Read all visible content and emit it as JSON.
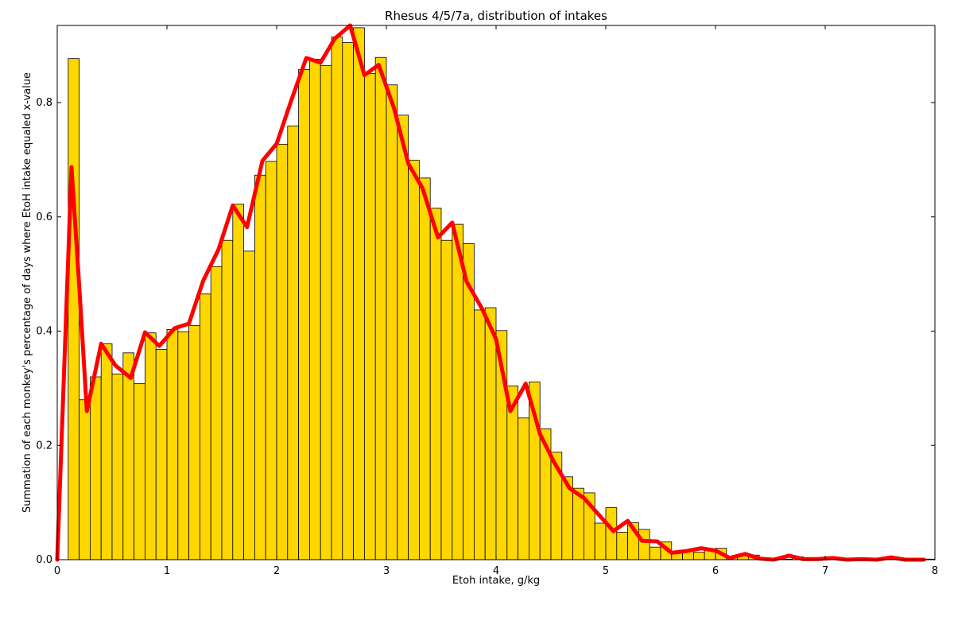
{
  "chart_data": {
    "type": "bar",
    "title": "Rhesus 4/5/7a, distribution of intakes",
    "xlabel": "Etoh intake, g/kg",
    "ylabel": "Summation of each monkey's percentage of days where EtoH intake equaled x-value",
    "xlim": [
      0,
      8
    ],
    "ylim": [
      0,
      0.935
    ],
    "x_ticks": [
      "0",
      "1",
      "2",
      "3",
      "4",
      "5",
      "6",
      "7",
      "8"
    ],
    "y_ticks": [
      "0.0",
      "0.2",
      "0.4",
      "0.6",
      "0.8"
    ],
    "grid": false,
    "bin_width": 0.1,
    "bins": {
      "left_edges": [
        0.1,
        0.2,
        0.3,
        0.4,
        0.5,
        0.6,
        0.7,
        0.8,
        0.9,
        1.0,
        1.1,
        1.2,
        1.3,
        1.4,
        1.5,
        1.6,
        1.7,
        1.8,
        1.9,
        2.0,
        2.1,
        2.2,
        2.3,
        2.4,
        2.5,
        2.6,
        2.7,
        2.8,
        2.9,
        3.0,
        3.1,
        3.2,
        3.3,
        3.4,
        3.5,
        3.6,
        3.7,
        3.8,
        3.9,
        4.0,
        4.1,
        4.2,
        4.3,
        4.4,
        4.5,
        4.6,
        4.7,
        4.8,
        4.9,
        5.0,
        5.1,
        5.2,
        5.3,
        5.4,
        5.5,
        5.6,
        5.7,
        5.8,
        5.9,
        6.0,
        6.1,
        6.2,
        6.3,
        6.4,
        6.5,
        6.6,
        6.7,
        6.8,
        6.9,
        7.0,
        7.1,
        7.2,
        7.3,
        7.4,
        7.5,
        7.6,
        7.7,
        7.8,
        7.9
      ],
      "values": [
        0.877,
        0.28,
        0.32,
        0.378,
        0.325,
        0.362,
        0.308,
        0.397,
        0.368,
        0.403,
        0.399,
        0.41,
        0.465,
        0.513,
        0.559,
        0.622,
        0.54,
        0.673,
        0.697,
        0.727,
        0.759,
        0.858,
        0.876,
        0.865,
        0.915,
        0.905,
        0.931,
        0.851,
        0.879,
        0.831,
        0.778,
        0.699,
        0.668,
        0.615,
        0.559,
        0.587,
        0.553,
        0.437,
        0.441,
        0.401,
        0.304,
        0.248,
        0.311,
        0.229,
        0.188,
        0.145,
        0.125,
        0.117,
        0.064,
        0.091,
        0.048,
        0.065,
        0.053,
        0.022,
        0.031,
        0.012,
        0.016,
        0.013,
        0.019,
        0.02,
        0.005,
        0.008,
        0.008,
        0.003,
        0.002,
        0.001,
        0.005,
        0.002,
        0.002,
        0.001,
        0.001,
        0.001,
        0.001,
        0.001,
        0.001,
        0.002,
        0.001,
        0.001,
        0.001
      ]
    },
    "series": [
      {
        "name": "",
        "type": "line",
        "color": "#ff0000",
        "x": [
          0.0,
          0.13,
          0.2,
          0.27,
          0.4,
          0.53,
          0.67,
          0.8,
          0.93,
          1.07,
          1.2,
          1.33,
          1.47,
          1.6,
          1.73,
          1.87,
          2.0,
          2.13,
          2.27,
          2.4,
          2.53,
          2.67,
          2.8,
          2.93,
          3.07,
          3.2,
          3.33,
          3.47,
          3.6,
          3.73,
          3.87,
          4.0,
          4.13,
          4.27,
          4.4,
          4.53,
          4.67,
          4.8,
          4.93,
          5.07,
          5.2,
          5.33,
          5.47,
          5.6,
          5.73,
          5.87,
          6.0,
          6.13,
          6.27,
          6.4,
          6.53,
          6.67,
          6.8,
          6.93,
          7.07,
          7.2,
          7.33,
          7.47,
          7.6,
          7.73,
          7.9
        ],
        "y": [
          0.0,
          0.687,
          0.48,
          0.26,
          0.378,
          0.34,
          0.318,
          0.398,
          0.374,
          0.405,
          0.413,
          0.488,
          0.543,
          0.62,
          0.582,
          0.698,
          0.728,
          0.802,
          0.878,
          0.87,
          0.912,
          0.935,
          0.848,
          0.866,
          0.79,
          0.693,
          0.65,
          0.564,
          0.59,
          0.487,
          0.44,
          0.386,
          0.26,
          0.308,
          0.22,
          0.17,
          0.125,
          0.108,
          0.08,
          0.05,
          0.068,
          0.033,
          0.032,
          0.012,
          0.015,
          0.02,
          0.016,
          0.003,
          0.01,
          0.002,
          0.0,
          0.007,
          0.001,
          0.001,
          0.003,
          0.0,
          0.001,
          0.0,
          0.004,
          0.0,
          0.0
        ]
      }
    ],
    "colors": {
      "bar_fill": "#ffd700",
      "bar_edge": "#000000",
      "line": "#ff0000",
      "frame": "#000000"
    }
  }
}
